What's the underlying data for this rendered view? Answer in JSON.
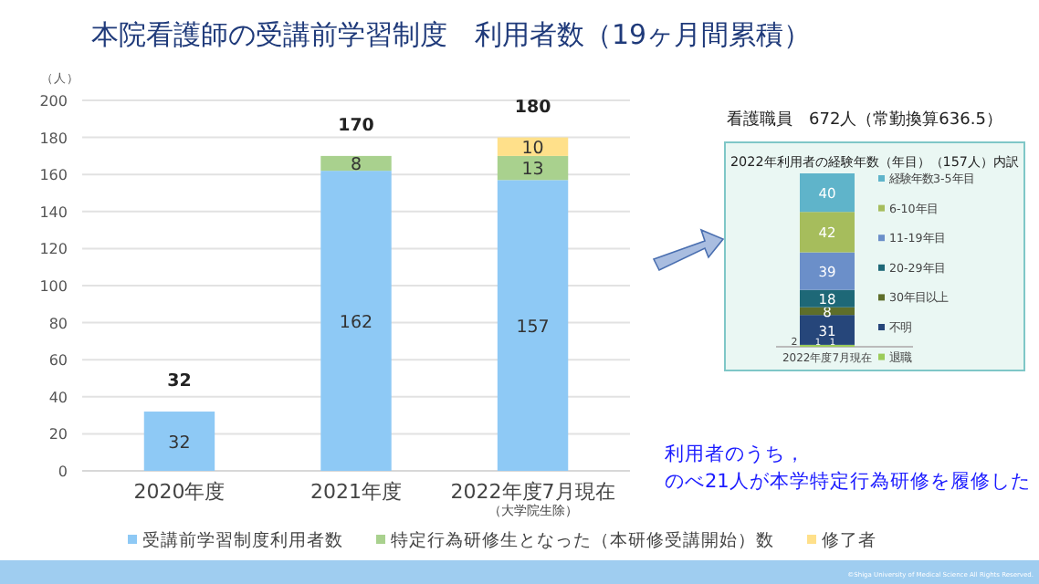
{
  "chart_data": [
    {
      "type": "bar",
      "stacked": true,
      "title": "本院看護師の受講前学習制度　利用者数（19ヶ月間累積）",
      "ylabel": "（人）",
      "categories": [
        "2020年度",
        "2021年度",
        "2022年度7月現在（大学院生除）"
      ],
      "series": [
        {
          "name": "受講前学習制度利用者数",
          "color": "#8ec9f5",
          "values": [
            32,
            162,
            157
          ]
        },
        {
          "name": "特定行為研修生となった（本研修受講開始）数",
          "color": "#a9d18e",
          "values": [
            null,
            8,
            13
          ]
        },
        {
          "name": "修了者",
          "color": "#ffe08a",
          "values": [
            null,
            null,
            10
          ]
        }
      ],
      "totals": [
        "32",
        "170",
        "180"
      ],
      "data_labels": true,
      "ylim": [
        0,
        200
      ],
      "yticks": [
        0,
        20,
        40,
        60,
        80,
        100,
        120,
        140,
        160,
        180,
        200
      ],
      "grid": "y",
      "legend": "bottom",
      "annotations": [
        "看護職員　672人（常勤換算636.5）",
        "利用者のうち，",
        "のべ21人が本学特定行為研修を履修した",
        "©Shiga University of Medical Science All Rights Reserved."
      ]
    },
    {
      "type": "bar",
      "stacked": true,
      "title": "2022年利用者の経験年数（年目）（157人）内訳",
      "categories": [
        "2022年度7月現在"
      ],
      "series": [
        {
          "name": "退職",
          "color": "#9ccc5a",
          "values": [
            2
          ]
        },
        {
          "name": "不明",
          "color": "#26467a",
          "values": [
            31
          ]
        },
        {
          "name": "30年目以上",
          "color": "#5e6e2a",
          "values": [
            8
          ]
        },
        {
          "name": "20-29年目",
          "color": "#1e6877",
          "values": [
            18
          ]
        },
        {
          "name": "11-19年目",
          "color": "#6b8fc9",
          "values": [
            39
          ]
        },
        {
          "name": "6-10年目",
          "color": "#a6bd5c",
          "values": [
            42
          ]
        },
        {
          "name": "経験年数3-5年目",
          "color": "#5fb4ca",
          "values": [
            40
          ]
        }
      ],
      "data_labels": true,
      "legend": "right",
      "annotations": [
        "1",
        "1"
      ]
    }
  ]
}
